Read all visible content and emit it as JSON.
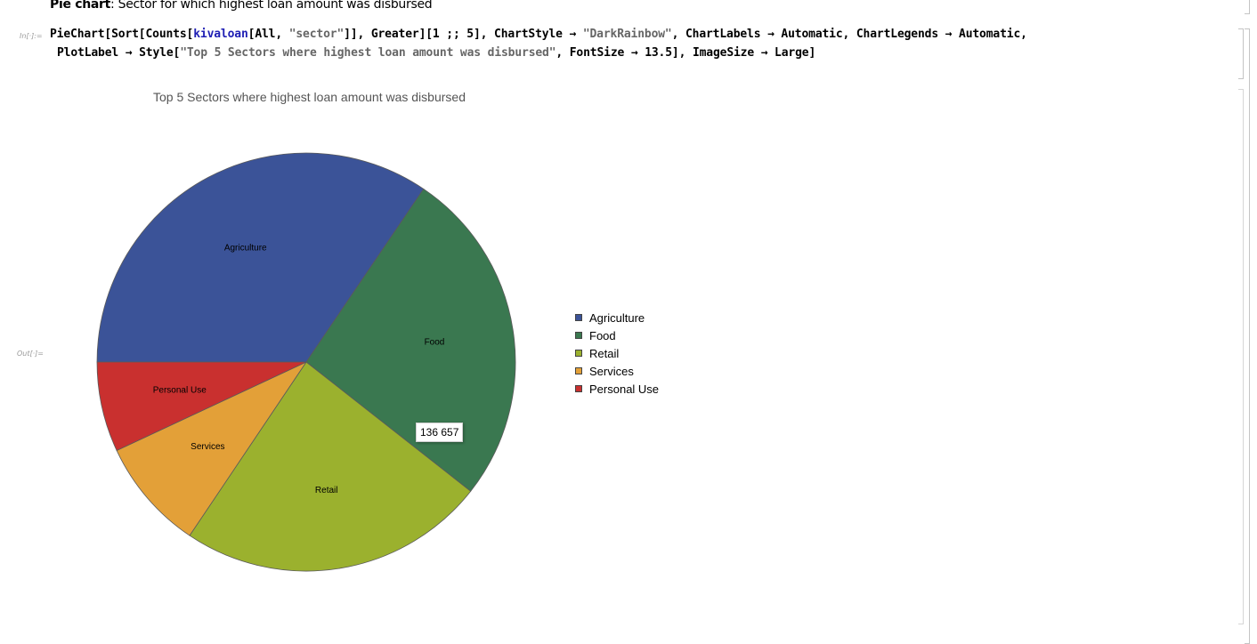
{
  "notebook": {
    "text_cell": {
      "bold": "Pie chart",
      "rest": ": Sector for which highest loan amount was disbursed"
    },
    "input_label": "In[·]:=",
    "output_label": "Out[·]=",
    "code": {
      "line1": [
        {
          "t": "PieChart[Sort[Counts[",
          "c": ""
        },
        {
          "t": "kivaloan",
          "c": "sym"
        },
        {
          "t": "[All, ",
          "c": ""
        },
        {
          "t": "\"sector\"",
          "c": "str"
        },
        {
          "t": "]], Greater][1 ;; 5], ChartStyle → ",
          "c": ""
        },
        {
          "t": "\"DarkRainbow\"",
          "c": "str"
        },
        {
          "t": ", ChartLabels → Automatic, ChartLegends → Automatic,",
          "c": ""
        }
      ],
      "line2": [
        {
          "t": "PlotLabel → Style[",
          "c": ""
        },
        {
          "t": "\"Top 5 Sectors where highest loan amount was disbursed\"",
          "c": "str"
        },
        {
          "t": ", FontSize → 13.5], ImageSize → Large]",
          "c": ""
        }
      ]
    }
  },
  "chart_data": {
    "type": "pie",
    "title": "Top 5 Sectors where highest loan amount was disbursed",
    "categories": [
      "Agriculture",
      "Food",
      "Retail",
      "Services",
      "Personal Use"
    ],
    "values": [
      180300,
      136657,
      124494,
      45140,
      36385
    ],
    "colors": [
      "#3b5398",
      "#3a7850",
      "#9bb12e",
      "#e3a038",
      "#c9302f"
    ],
    "legend_position": "right",
    "tooltip": {
      "category": "Food",
      "text": "136 657"
    }
  }
}
